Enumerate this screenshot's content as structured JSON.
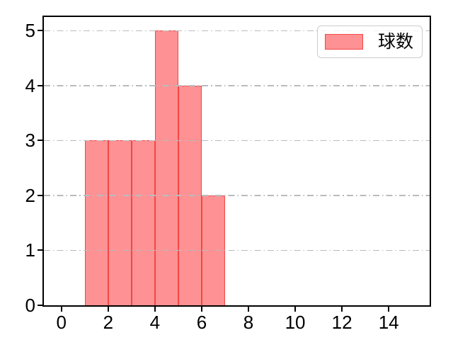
{
  "figure": {
    "background": "#ffffff",
    "spine_color": "#000000"
  },
  "chart_data": {
    "type": "bar",
    "subtype": "histogram",
    "title": "",
    "xlabel": "",
    "ylabel": "",
    "legend": {
      "position": "upper-right",
      "entries": [
        {
          "label": "球数",
          "swatch_fill": "#fd9193",
          "swatch_edge": "#f34747"
        }
      ]
    },
    "bins": {
      "start": 1,
      "width": 1,
      "edges": [
        1,
        2,
        3,
        4,
        5,
        6,
        7
      ]
    },
    "categories": [
      "1-2",
      "2-3",
      "3-4",
      "4-5",
      "5-6",
      "6-7"
    ],
    "values": [
      3,
      3,
      3,
      5,
      4,
      2
    ],
    "x_axis": {
      "min": -0.75,
      "max": 15.75,
      "ticks": [
        0,
        2,
        4,
        6,
        8,
        10,
        12,
        14
      ],
      "tick_labels": [
        "0",
        "2",
        "4",
        "6",
        "8",
        "10",
        "12",
        "14"
      ]
    },
    "y_axis": {
      "min": 0,
      "max": 5.25,
      "ticks": [
        0,
        1,
        2,
        3,
        4,
        5
      ],
      "tick_labels": [
        "0",
        "1",
        "2",
        "3",
        "4",
        "5"
      ]
    },
    "grid": {
      "axis": "y",
      "linestyle": "dash-dot",
      "color": "#b8bcbf"
    },
    "colors": {
      "bar_fill": "#fd9193",
      "bar_edge": "#f34747"
    }
  }
}
